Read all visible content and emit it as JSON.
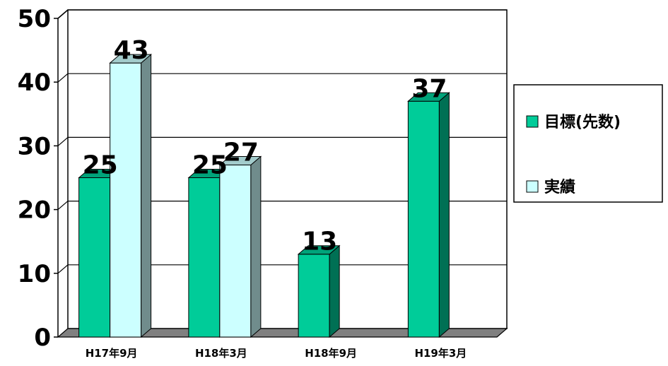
{
  "chart_data": {
    "type": "bar",
    "categories": [
      "H17年9月",
      "H18年3月",
      "H18年9月",
      "H19年3月"
    ],
    "series": [
      {
        "name": "目標(先数)",
        "values": [
          25,
          25,
          13,
          37
        ],
        "color": "#00cc99"
      },
      {
        "name": "実績",
        "values": [
          43,
          27,
          null,
          null
        ],
        "color": "#ccffff"
      }
    ],
    "ylim": [
      0,
      50
    ],
    "yticks": [
      "0",
      "10",
      "20",
      "30",
      "40",
      "50"
    ],
    "data_labels": [
      [
        "25",
        "25",
        "13",
        "37"
      ],
      [
        "43",
        "27",
        "",
        ""
      ]
    ],
    "grid": true,
    "legend": "right",
    "style": "3d"
  }
}
